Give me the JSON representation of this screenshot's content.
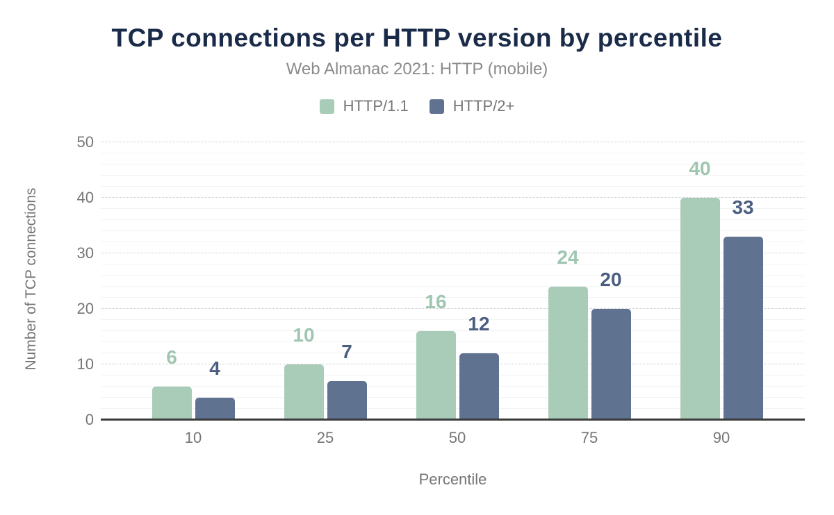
{
  "chart_data": {
    "type": "bar",
    "title": "TCP connections per HTTP version by percentile",
    "subtitle": "Web Almanac 2021: HTTP (mobile)",
    "categories": [
      "10",
      "25",
      "50",
      "75",
      "90"
    ],
    "series": [
      {
        "name": "HTTP/1.1",
        "values": [
          6,
          10,
          16,
          24,
          40
        ],
        "color": "#a8ccb8",
        "label_color": "#9fc6b1"
      },
      {
        "name": "HTTP/2+",
        "values": [
          4,
          7,
          12,
          20,
          33
        ],
        "color": "#5f7290",
        "label_color": "#4b5e82"
      }
    ],
    "xlabel": "Percentile",
    "ylabel": "Number of TCP connections",
    "ylim": [
      0,
      50
    ],
    "yticks": [
      0,
      10,
      20,
      30,
      40,
      50
    ],
    "grid": {
      "major_interval": 10,
      "minor_interval": 2,
      "major_style": "dotted",
      "minor_style": "solid"
    },
    "legend_position": "top-center"
  },
  "colors": {
    "title": "#1a2b49",
    "subtitle": "#8b8b8b",
    "axis_text": "#757575",
    "axis_line": "#3b3b3b",
    "grid_major": "#cbcbcb",
    "grid_minor": "#f2f2f2",
    "background": "#ffffff"
  }
}
